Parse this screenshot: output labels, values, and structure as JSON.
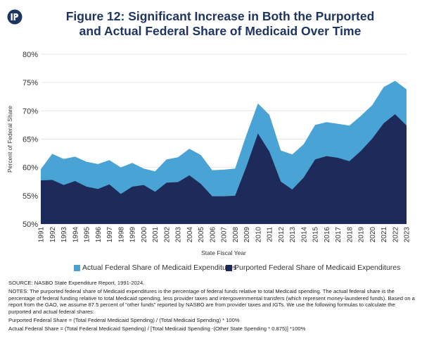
{
  "header": {
    "title_line1": "Figure 12: Significant Increase in Both the Purported",
    "title_line2": "and Actual Federal Share of Medicaid Over Time",
    "logo_icon": "paragon-logo-icon"
  },
  "colors": {
    "actual": "#4aa3d5",
    "purported": "#1e2a5a",
    "title": "#1e3461",
    "grid": "#e6e6e6"
  },
  "chart_data": {
    "type": "area",
    "xlabel": "State Fiscal Year",
    "ylabel": "Percent of Federal Share",
    "ylim": [
      50,
      80
    ],
    "y_ticks": [
      "50%",
      "55%",
      "60%",
      "65%",
      "70%",
      "75%",
      "80%"
    ],
    "grid": true,
    "legend_position": "bottom",
    "categories": [
      "1991",
      "1992",
      "1993",
      "1994",
      "1995",
      "1996",
      "1997",
      "1998",
      "1999",
      "2000",
      "2001",
      "2002",
      "2003",
      "2004",
      "2005",
      "2006",
      "2007",
      "2008",
      "2009",
      "2010",
      "2011",
      "2012",
      "2013",
      "2014",
      "2015",
      "2016",
      "2017",
      "2018",
      "2019",
      "2020",
      "2021",
      "2022",
      "2023"
    ],
    "series": [
      {
        "name": "Actual Federal Share of Medicaid Expenditures",
        "values": [
          59.7,
          62.4,
          61.5,
          61.9,
          61.0,
          60.6,
          61.3,
          60.0,
          60.8,
          59.8,
          59.3,
          61.4,
          61.8,
          63.3,
          62.2,
          59.5,
          59.6,
          59.8,
          65.8,
          71.3,
          69.3,
          63.0,
          62.3,
          64.1,
          67.5,
          68.0,
          67.7,
          67.4,
          69.1,
          71.0,
          74.2,
          75.3,
          73.8
        ]
      },
      {
        "name": "Purported Federal Share of Medicaid Expenditures",
        "values": [
          57.7,
          57.8,
          56.9,
          57.6,
          56.6,
          56.2,
          57.0,
          55.3,
          56.6,
          56.9,
          55.7,
          57.3,
          57.4,
          58.6,
          57.1,
          54.9,
          54.9,
          55.0,
          60.2,
          66.0,
          62.8,
          57.5,
          56.1,
          58.2,
          61.4,
          62.0,
          61.7,
          61.1,
          62.9,
          65.1,
          67.8,
          69.4,
          67.4
        ]
      }
    ]
  },
  "notes": {
    "source": "SOURCE: NASBO State Expenditure Report, 1991-2024.",
    "notes_text": "NOTES: The purported federal share of Medicaid expenditures is the percentage of federal funds relative to total Medicaid spending. The actual federal share is the percentage of federal funding relative to total Medicaid spending, less provider taxes and intergovernmental transfers (which represent money-laundered funds). Based on a report from the GAO, we assume 87.5 percent of “other funds” reported by NASBO are from provider taxes and IGTs. We use the following formulas to calculate the purported and actual federal shares:",
    "formula_purported": "Purported Federal Share = (Total Federal Medicaid Spending) / (Total Medicaid Spending) * 100%",
    "formula_actual": "Actual Federal Share = (Total Federal Medicaid Spending) / [Total Medicaid Spending -(Other State Spending * 0.875)] *100%"
  }
}
